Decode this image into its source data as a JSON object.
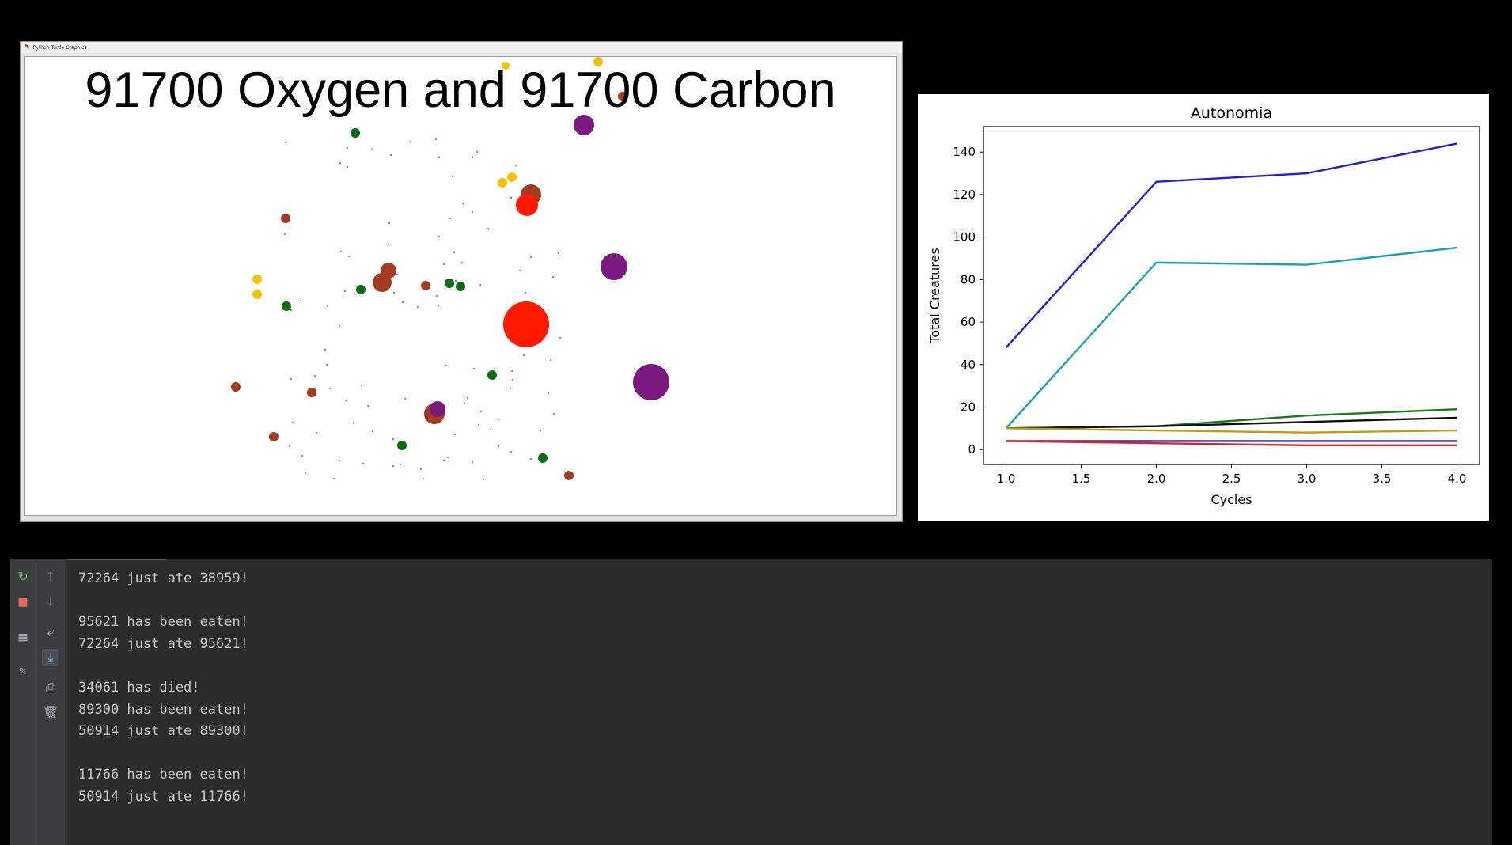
{
  "turtle_window": {
    "title": "Python Turtle Graphics",
    "heading": "91700 Oxygen and 91700 Carbon"
  },
  "plot": {
    "chart_data": {
      "type": "line",
      "title": "Autonomia",
      "xlabel": "Cycles",
      "ylabel": "Total Creatures",
      "x": [
        1.0,
        2.0,
        3.0,
        4.0
      ],
      "xlim": [
        0.85,
        4.15
      ],
      "ylim": [
        -7,
        152
      ],
      "xticks": [
        "1.0",
        "1.5",
        "2.0",
        "2.5",
        "3.0",
        "3.5",
        "4.0"
      ],
      "yticks": [
        "0",
        "20",
        "40",
        "60",
        "80",
        "100",
        "120",
        "140"
      ],
      "grid": false,
      "series": [
        {
          "color": "#1f1fd6",
          "values": [
            48,
            126,
            130,
            144
          ]
        },
        {
          "color": "#17a2b0",
          "values": [
            10,
            88,
            87,
            95
          ]
        },
        {
          "color": "#1a7a1a",
          "values": [
            10,
            11,
            16,
            19
          ]
        },
        {
          "color": "#111111",
          "values": [
            10,
            11,
            13,
            15
          ]
        },
        {
          "color": "#b5a21a",
          "values": [
            10,
            9,
            8,
            9
          ]
        },
        {
          "color": "#2222aa",
          "values": [
            4,
            4,
            4,
            4
          ]
        },
        {
          "color": "#dd2222",
          "values": [
            4,
            3,
            2,
            2
          ]
        }
      ]
    }
  },
  "console": {
    "toolbar_left": [
      {
        "name": "rerun-icon",
        "glyph": "↻"
      },
      {
        "name": "stop-icon",
        "glyph": "■"
      },
      {
        "name": "layout-icon",
        "glyph": "▦"
      },
      {
        "name": "pin-icon",
        "glyph": "📌"
      }
    ],
    "toolbar_right": [
      {
        "name": "scroll-up-icon",
        "glyph": "↑"
      },
      {
        "name": "scroll-down-icon",
        "glyph": "↓"
      },
      {
        "name": "soft-wrap-icon",
        "glyph": "⤶"
      },
      {
        "name": "scroll-to-end-icon",
        "glyph": "⤓"
      },
      {
        "name": "print-icon",
        "glyph": "⎙"
      },
      {
        "name": "trash-icon",
        "glyph": "🗑"
      }
    ],
    "lines": [
      "72264 just ate 38959!",
      "",
      "95621 has been eaten!",
      "72264 just ate 95621!",
      "",
      "34061 has died!",
      "89300 has been eaten!",
      "50914 just ate 89300!",
      "",
      "11766 has been eaten!",
      "50914 just ate 11766!"
    ]
  },
  "colors": {
    "green": "#0b6b12",
    "brown": "#a33a22",
    "yellow": "#f0c20c",
    "purple": "#7b1a7e",
    "red": "#ff1a00",
    "dust": "#d060c8"
  }
}
